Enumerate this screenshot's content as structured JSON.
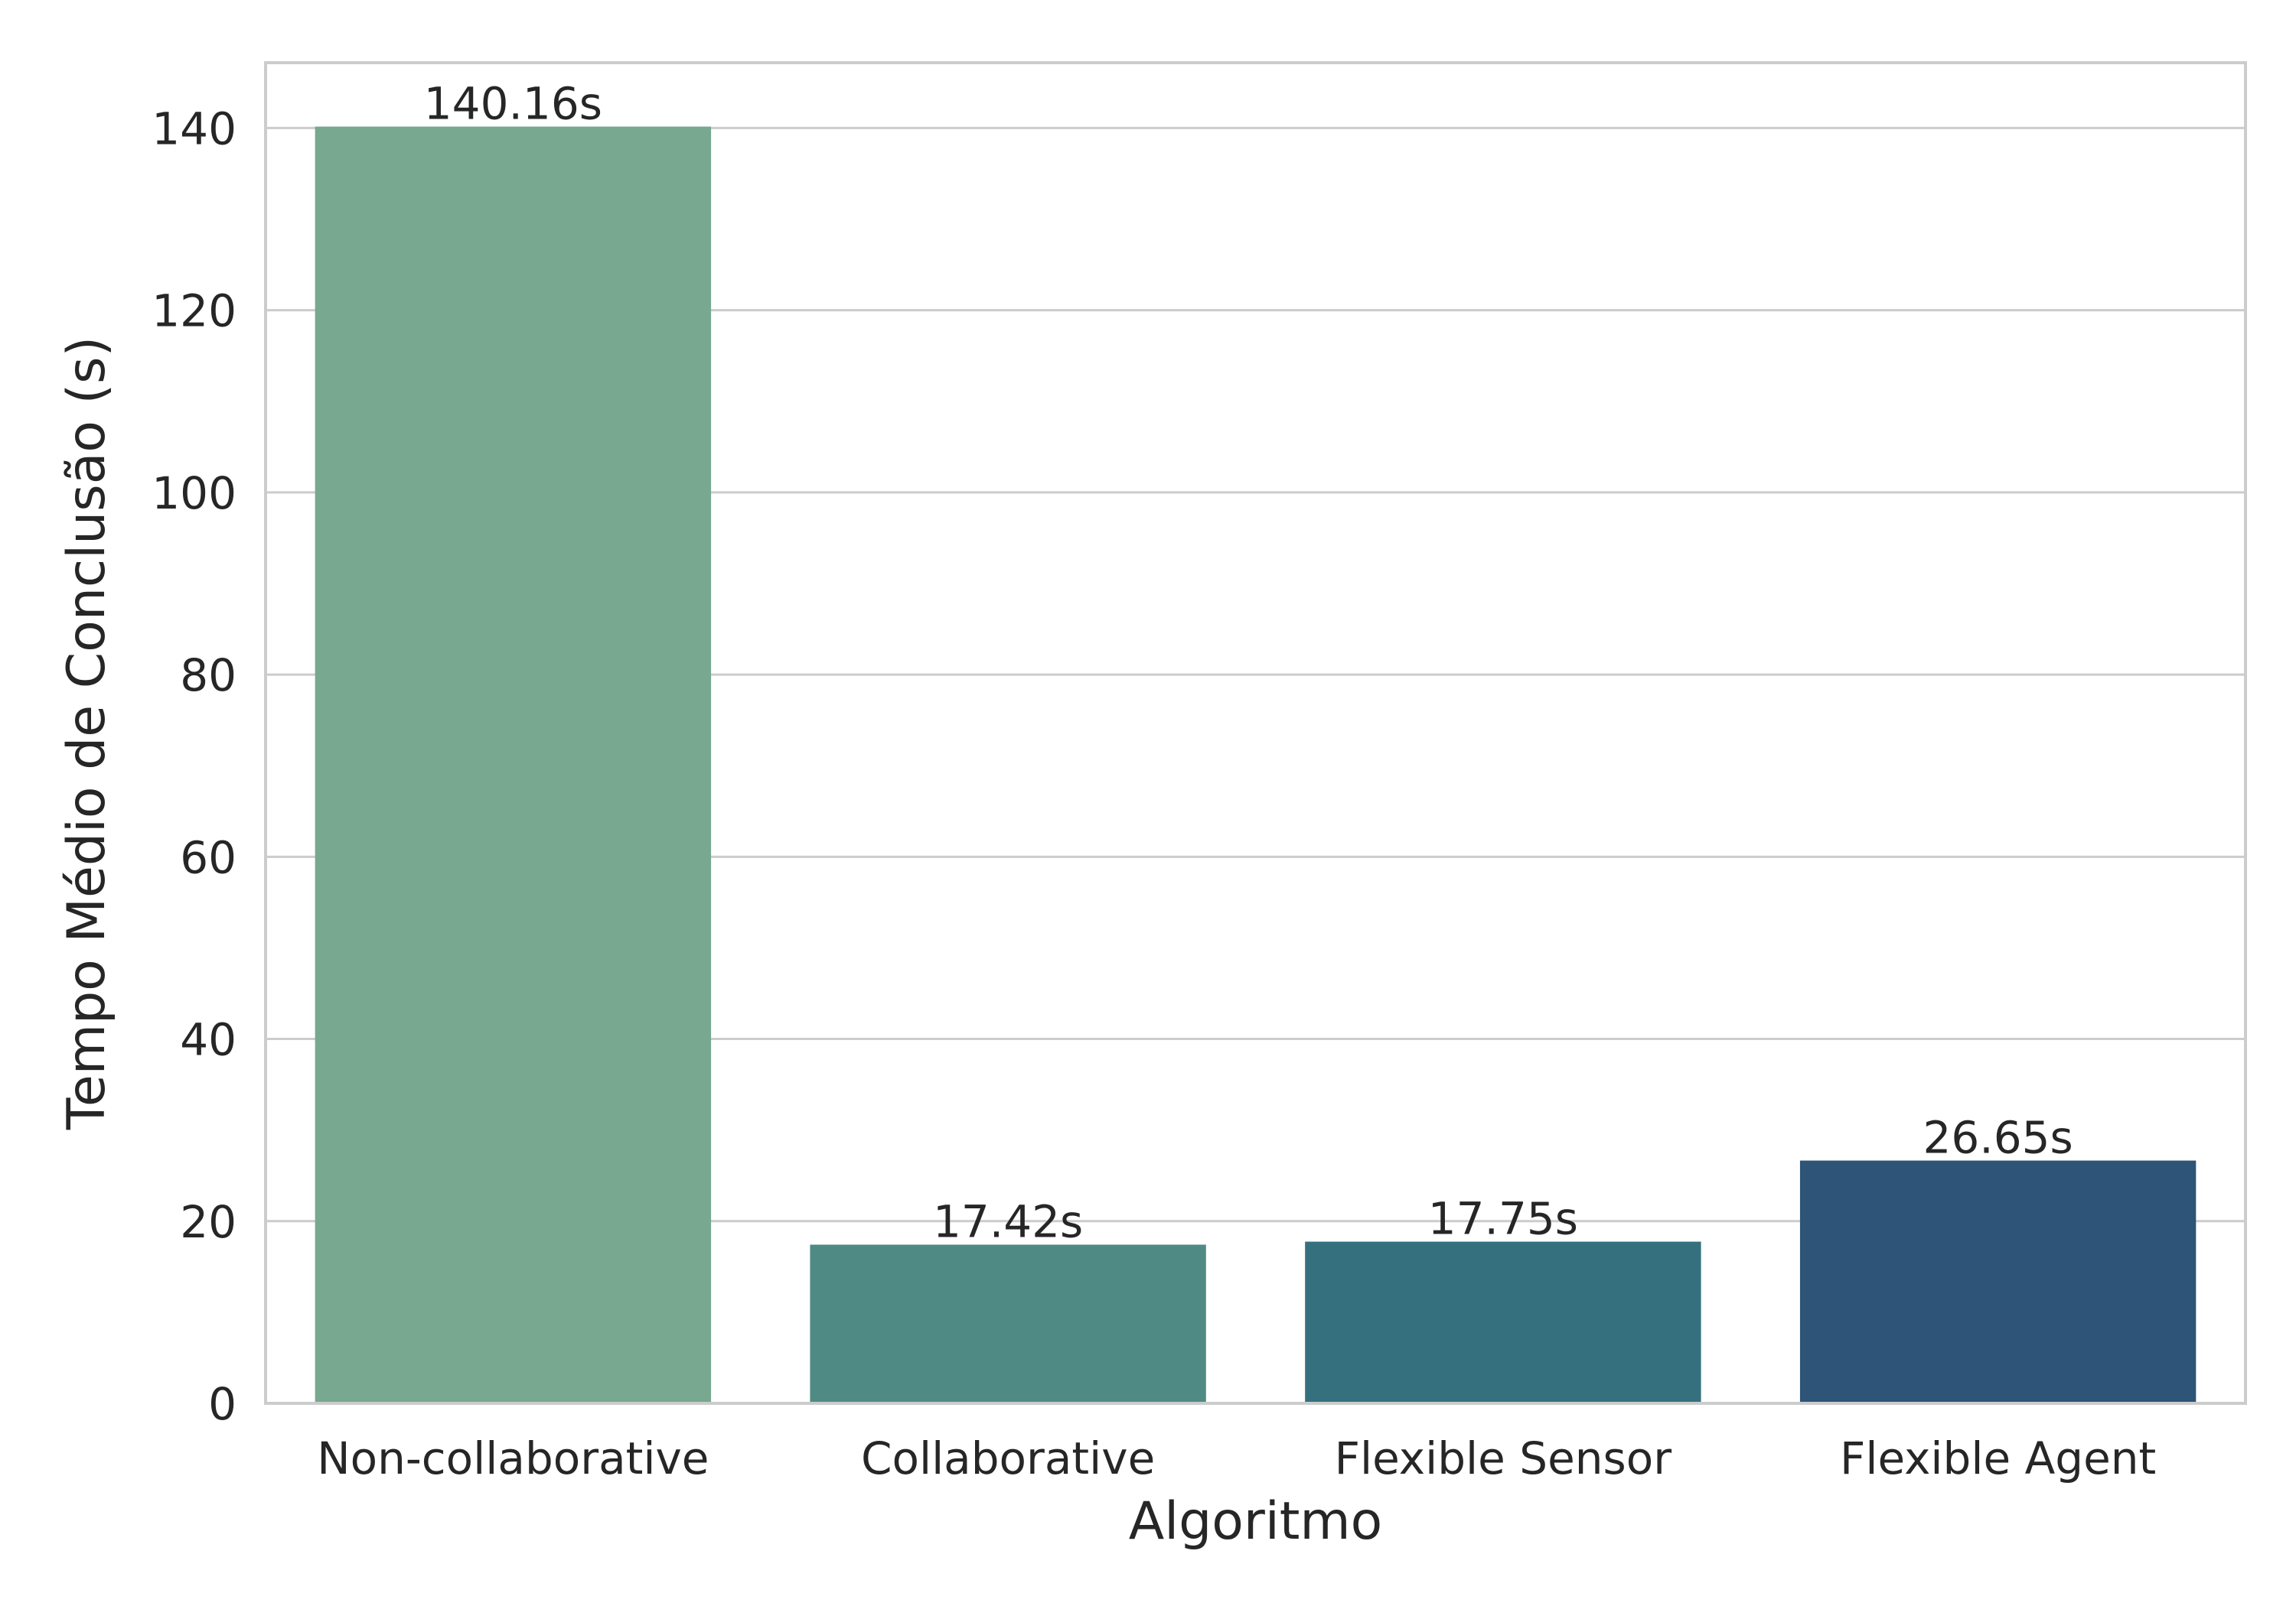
{
  "chart_data": {
    "type": "bar",
    "categories": [
      "Non-collaborative",
      "Collaborative",
      "Flexible Sensor",
      "Flexible Agent"
    ],
    "values": [
      140.16,
      17.42,
      17.75,
      26.65
    ],
    "data_labels": [
      "140.16s",
      "17.42s",
      "17.75s",
      "26.65s"
    ],
    "colors": [
      "#78a890",
      "#4f8b84",
      "#35707e",
      "#2e5477"
    ],
    "title": "",
    "xlabel": "Algoritmo",
    "ylabel": "Tempo Médio de Conclusão (s)",
    "ylim": [
      0,
      147.17
    ],
    "yticks": [
      0,
      20,
      40,
      60,
      80,
      100,
      120,
      140
    ],
    "grid": "horizontal",
    "legend": "none"
  }
}
